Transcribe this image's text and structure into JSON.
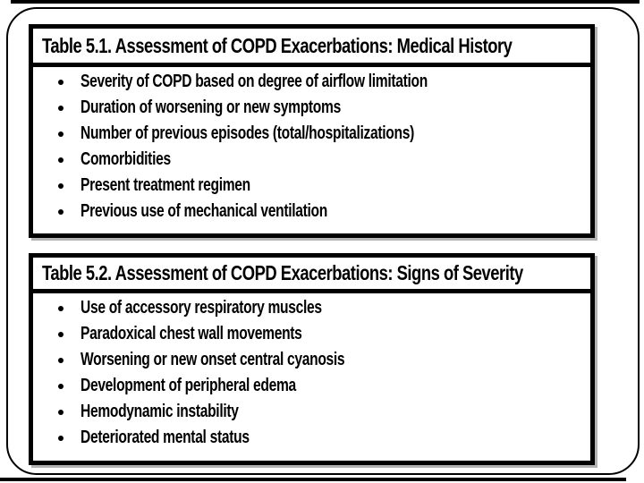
{
  "slide": {
    "tables": [
      {
        "title": "Table 5.1. Assessment of COPD Exacerbations: Medical History",
        "items": [
          "Severity of COPD based on degree of airflow limitation",
          "Duration of worsening or new symptoms",
          "Number of previous episodes (total/hospitalizations)",
          "Comorbidities",
          "Present treatment regimen",
          "Previous use of mechanical ventilation"
        ]
      },
      {
        "title": "Table 5.2. Assessment of COPD Exacerbations: Signs of Severity",
        "items": [
          "Use of accessory respiratory muscles",
          "Paradoxical chest wall movements",
          "Worsening or new onset central cyanosis",
          "Development of peripheral edema",
          "Hemodynamic instability",
          "Deteriorated mental status"
        ]
      }
    ],
    "colors": {
      "ink": "#000000",
      "paper": "#ffffff",
      "border_shadow": "#b3b3b3"
    }
  }
}
